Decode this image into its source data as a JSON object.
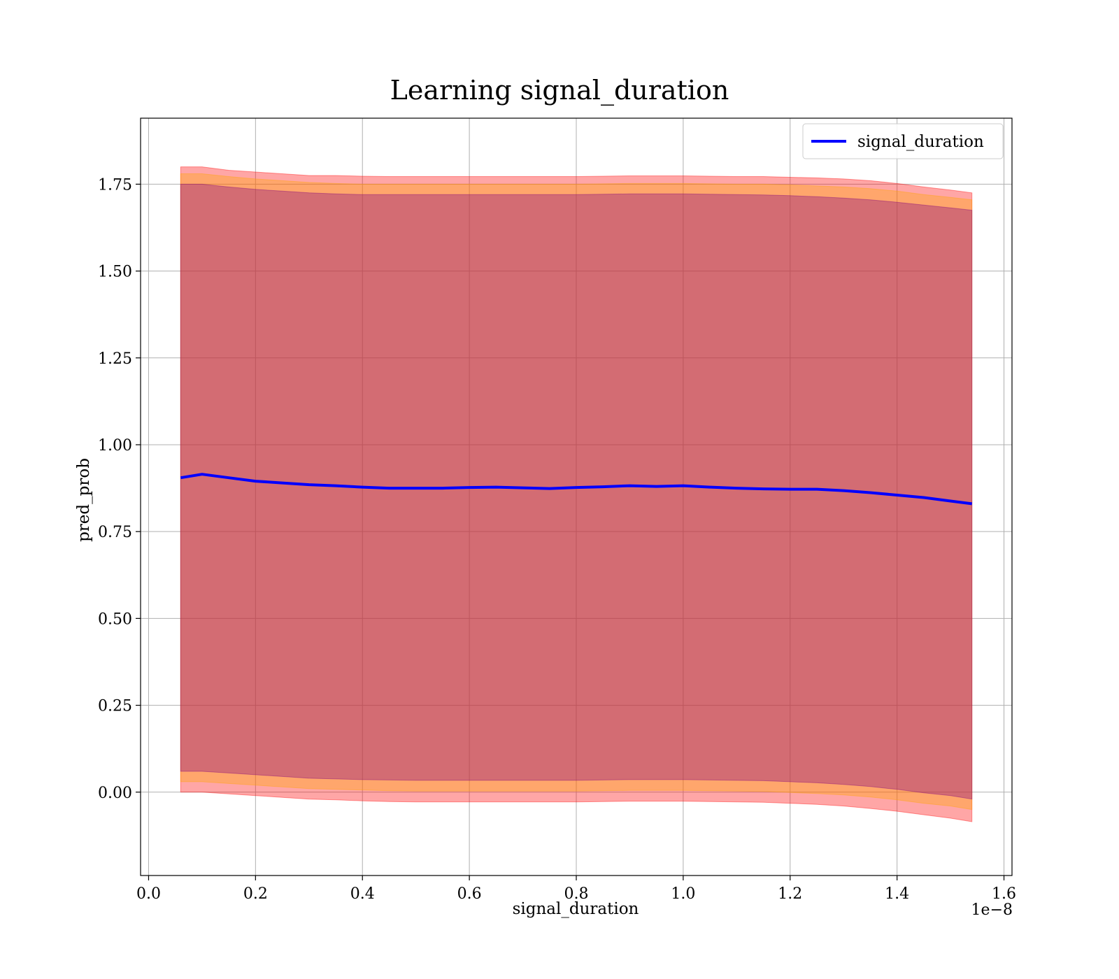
{
  "chart_data": {
    "type": "line",
    "title": "Learning signal_duration",
    "xlabel": "signal_duration",
    "ylabel": "pred_prob",
    "x_offset_text": "1e−8",
    "xlim": [
      -0.015,
      1.615
    ],
    "ylim": [
      -0.24,
      1.94
    ],
    "x_ticks": [
      0.0,
      0.2,
      0.4,
      0.6,
      0.8,
      1.0,
      1.2,
      1.4,
      1.6
    ],
    "x_tick_labels": [
      "0.0",
      "0.2",
      "0.4",
      "0.6",
      "0.8",
      "1.0",
      "1.2",
      "1.4",
      "1.6"
    ],
    "y_ticks": [
      0.0,
      0.25,
      0.5,
      0.75,
      1.0,
      1.25,
      1.5,
      1.75
    ],
    "y_tick_labels": [
      "0.00",
      "0.25",
      "0.50",
      "0.75",
      "1.00",
      "1.25",
      "1.50",
      "1.75"
    ],
    "grid": true,
    "legend": {
      "position": "top-right",
      "entries": [
        "signal_duration"
      ]
    },
    "series": [
      {
        "name": "signal_duration",
        "color": "#0000ff",
        "x": [
          0.06,
          0.1,
          0.15,
          0.2,
          0.25,
          0.3,
          0.35,
          0.4,
          0.45,
          0.5,
          0.55,
          0.6,
          0.65,
          0.7,
          0.75,
          0.8,
          0.85,
          0.9,
          0.95,
          1.0,
          1.05,
          1.1,
          1.15,
          1.2,
          1.25,
          1.3,
          1.35,
          1.4,
          1.45,
          1.5,
          1.54
        ],
        "y": [
          0.905,
          0.915,
          0.905,
          0.895,
          0.89,
          0.885,
          0.882,
          0.878,
          0.875,
          0.875,
          0.875,
          0.877,
          0.878,
          0.876,
          0.874,
          0.877,
          0.879,
          0.882,
          0.88,
          0.882,
          0.878,
          0.875,
          0.873,
          0.872,
          0.872,
          0.868,
          0.862,
          0.855,
          0.848,
          0.838,
          0.83
        ]
      }
    ],
    "bands": [
      {
        "color": "#ff0000",
        "upper": [
          1.8,
          1.8,
          1.79,
          1.785,
          1.78,
          1.775,
          1.775,
          1.773,
          1.772,
          1.772,
          1.772,
          1.772,
          1.772,
          1.772,
          1.772,
          1.772,
          1.773,
          1.774,
          1.774,
          1.774,
          1.773,
          1.772,
          1.772,
          1.77,
          1.768,
          1.765,
          1.76,
          1.752,
          1.742,
          1.733,
          1.725
        ],
        "lower": [
          0.0,
          0.0,
          -0.005,
          -0.01,
          -0.015,
          -0.02,
          -0.022,
          -0.025,
          -0.027,
          -0.028,
          -0.028,
          -0.028,
          -0.028,
          -0.028,
          -0.028,
          -0.028,
          -0.027,
          -0.026,
          -0.026,
          -0.026,
          -0.027,
          -0.028,
          -0.029,
          -0.032,
          -0.035,
          -0.04,
          -0.047,
          -0.055,
          -0.065,
          -0.075,
          -0.085
        ]
      },
      {
        "color": "#ffa500",
        "upper": [
          1.78,
          1.78,
          1.772,
          1.765,
          1.76,
          1.755,
          1.752,
          1.75,
          1.75,
          1.75,
          1.75,
          1.75,
          1.75,
          1.75,
          1.75,
          1.75,
          1.751,
          1.752,
          1.752,
          1.752,
          1.751,
          1.75,
          1.75,
          1.748,
          1.745,
          1.742,
          1.737,
          1.73,
          1.72,
          1.712,
          1.705
        ],
        "lower": [
          0.03,
          0.03,
          0.025,
          0.02,
          0.015,
          0.01,
          0.008,
          0.006,
          0.004,
          0.003,
          0.003,
          0.003,
          0.003,
          0.003,
          0.003,
          0.003,
          0.004,
          0.005,
          0.005,
          0.005,
          0.004,
          0.003,
          0.002,
          -0.001,
          -0.004,
          -0.008,
          -0.014,
          -0.022,
          -0.032,
          -0.04,
          -0.05
        ]
      },
      {
        "color": "#800080",
        "upper": [
          1.75,
          1.75,
          1.742,
          1.735,
          1.73,
          1.725,
          1.722,
          1.72,
          1.72,
          1.72,
          1.72,
          1.72,
          1.72,
          1.72,
          1.72,
          1.72,
          1.721,
          1.722,
          1.722,
          1.722,
          1.721,
          1.72,
          1.719,
          1.717,
          1.714,
          1.71,
          1.705,
          1.698,
          1.69,
          1.682,
          1.675
        ],
        "lower": [
          0.06,
          0.06,
          0.055,
          0.05,
          0.045,
          0.04,
          0.038,
          0.036,
          0.035,
          0.034,
          0.034,
          0.034,
          0.034,
          0.034,
          0.034,
          0.034,
          0.035,
          0.036,
          0.036,
          0.036,
          0.035,
          0.034,
          0.033,
          0.03,
          0.027,
          0.022,
          0.016,
          0.008,
          -0.002,
          -0.01,
          -0.02
        ]
      }
    ]
  }
}
